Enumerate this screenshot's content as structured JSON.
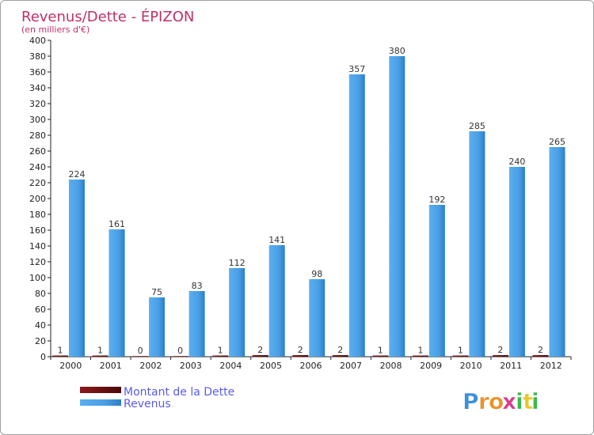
{
  "chart_data": {
    "type": "bar",
    "title": "Revenus/Dette - ÉPIZON",
    "subtitle": "(en milliers d'€)",
    "categories": [
      "2000",
      "2001",
      "2002",
      "2003",
      "2004",
      "2005",
      "2006",
      "2007",
      "2008",
      "2009",
      "2010",
      "2011",
      "2012"
    ],
    "series": [
      {
        "name": "Montant de la Dette",
        "color": "#6b0f0f",
        "values": [
          1,
          1,
          0,
          0,
          1,
          2,
          2,
          2,
          1,
          1,
          1,
          2,
          2
        ]
      },
      {
        "name": "Revenus",
        "color": "#4da3e8",
        "values": [
          224,
          161,
          75,
          83,
          112,
          141,
          98,
          357,
          380,
          192,
          285,
          240,
          265
        ]
      }
    ],
    "ylim": [
      0,
      400
    ],
    "yticks": [
      0,
      20,
      40,
      60,
      80,
      100,
      120,
      140,
      160,
      180,
      200,
      220,
      240,
      260,
      280,
      300,
      320,
      340,
      360,
      380,
      400
    ],
    "grid": false,
    "legend": "bottom-left",
    "xlabel": "",
    "ylabel": ""
  },
  "logo": {
    "text": "Proxiti",
    "letters": [
      {
        "ch": "P",
        "color": "#3c8fd8"
      },
      {
        "ch": "r",
        "color": "#e8932a"
      },
      {
        "ch": "o",
        "color": "#e8932a"
      },
      {
        "ch": "x",
        "color": "#d83c8c"
      },
      {
        "ch": "i",
        "color": "#3cb84a"
      },
      {
        "ch": "t",
        "color": "#e8c82a"
      },
      {
        "ch": "i",
        "color": "#3cb84a"
      }
    ]
  }
}
